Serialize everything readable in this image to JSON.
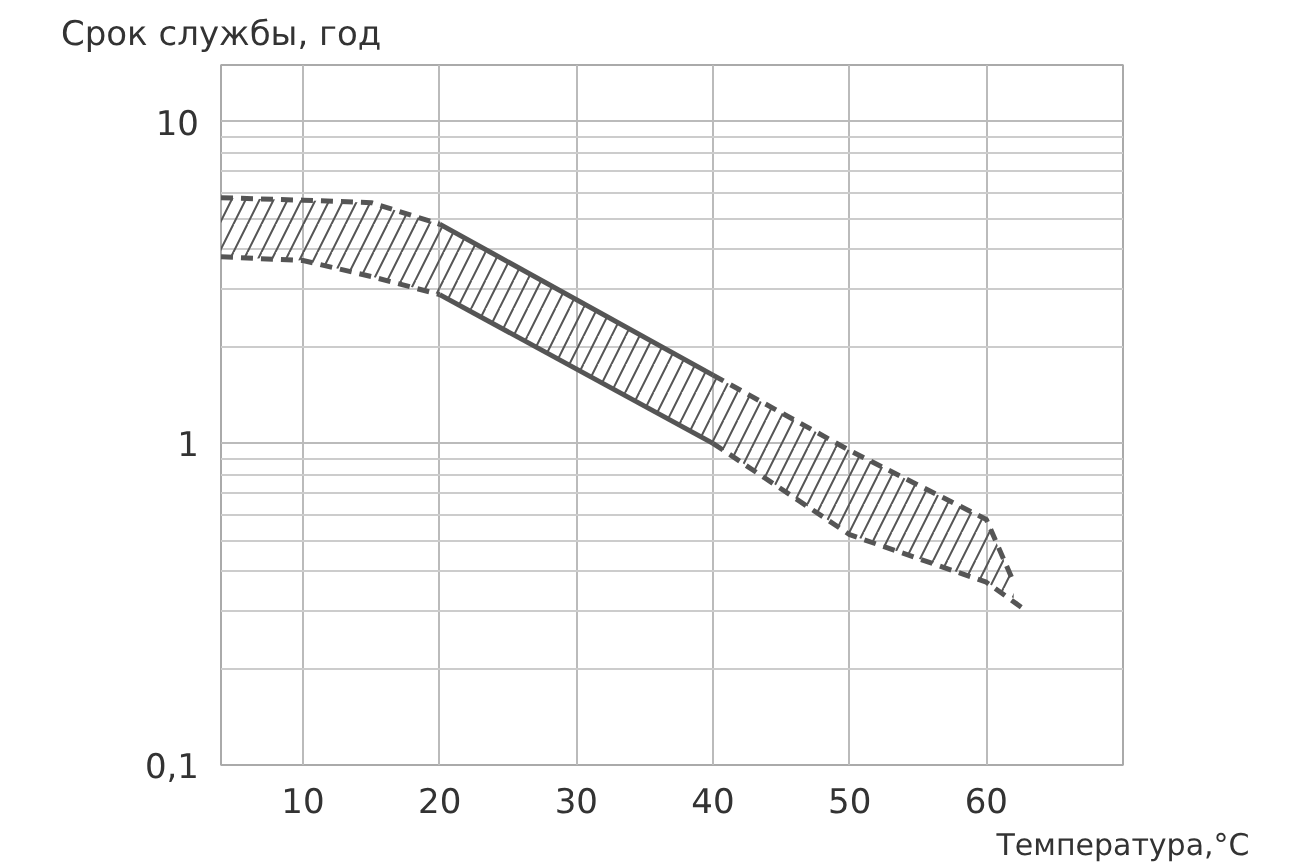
{
  "chart_data": {
    "type": "line",
    "ylabel": "Срок службы, год",
    "xlabel": "Температура,°C",
    "log": "y",
    "xlim": [
      4,
      70
    ],
    "ylim": [
      0.1,
      15
    ],
    "xticks": [
      10,
      20,
      30,
      40,
      50,
      60
    ],
    "yticks": [
      {
        "value": 0.1,
        "label": "0,1"
      },
      1,
      10
    ],
    "grid": true,
    "marker": "none",
    "series": [
      {
        "line_style": "dashed",
        "color": "#555555",
        "x": [
          4,
          10,
          15,
          20
        ],
        "values": [
          5.8,
          5.7,
          5.6,
          4.8
        ],
        "lower": [
          3.8,
          3.7,
          3.3,
          2.9
        ],
        "upper": [
          5.8,
          5.7,
          5.6,
          4.8
        ]
      },
      {
        "line_style": "solid",
        "color": "#555555",
        "x": [
          20,
          40
        ],
        "values": [
          4.8,
          1.63
        ],
        "lower": [
          2.9,
          1.0
        ],
        "upper": [
          4.8,
          1.63
        ]
      },
      {
        "line_style": "dashed",
        "color": "#555555",
        "x": [
          40,
          50,
          60,
          62
        ],
        "values": [
          1.63,
          0.95,
          0.58,
          0.37
        ],
        "lower": [
          1.0,
          0.52,
          0.37,
          0.33
        ],
        "upper": [
          1.63,
          0.95,
          0.58,
          0.37
        ]
      },
      {
        "line_style": "dashed",
        "color": "#555555",
        "x": [
          4,
          10,
          15,
          20
        ],
        "values": [
          3.8,
          3.7,
          3.3,
          2.9
        ]
      },
      {
        "line_style": "solid",
        "color": "#555555",
        "x": [
          20,
          40
        ],
        "values": [
          2.9,
          1.0
        ]
      },
      {
        "line_style": "dashed",
        "color": "#555555",
        "x": [
          40,
          50,
          60,
          63
        ],
        "values": [
          1.0,
          0.52,
          0.37,
          0.3
        ]
      }
    ]
  }
}
